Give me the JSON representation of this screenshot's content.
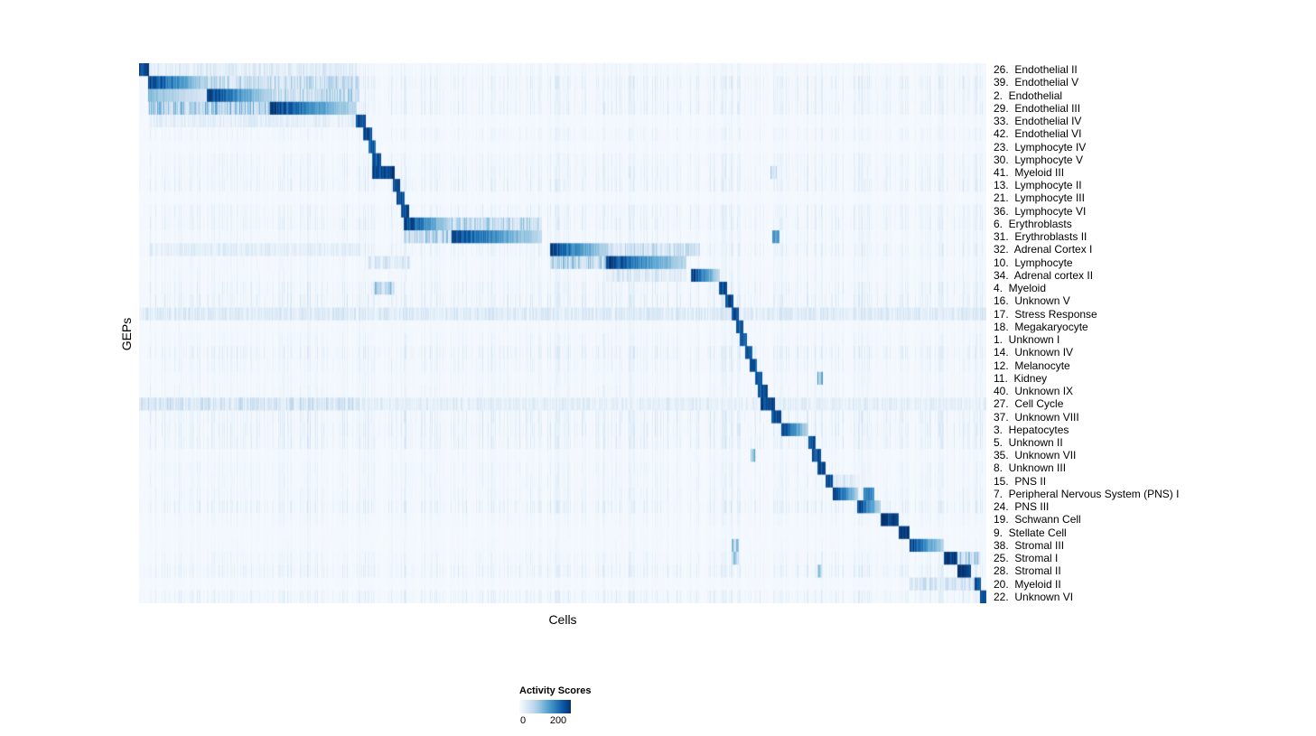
{
  "chart_data": {
    "type": "heatmap",
    "title": "",
    "xlabel": "Cells",
    "ylabel": "GEPs",
    "n_rows": 42,
    "colorbar": {
      "title": "Activity Scores",
      "tick_labels": [
        "0",
        "200"
      ],
      "min": 0,
      "max_tick": 200,
      "colormap": "Blues",
      "stops": [
        [
          0.0,
          247,
          251,
          255
        ],
        [
          0.125,
          222,
          235,
          247
        ],
        [
          0.25,
          198,
          219,
          239
        ],
        [
          0.375,
          158,
          202,
          225
        ],
        [
          0.5,
          107,
          174,
          214
        ],
        [
          0.625,
          66,
          146,
          198
        ],
        [
          0.75,
          33,
          113,
          181
        ],
        [
          0.875,
          8,
          81,
          156
        ],
        [
          1.0,
          8,
          48,
          107
        ]
      ]
    },
    "rows": [
      {
        "label": "26.  Endothelial II",
        "segments": [
          [
            0.0,
            0.0117,
            0.95
          ],
          [
            0.012,
            0.26,
            0.12
          ]
        ]
      },
      {
        "label": "39.  Endothelial V",
        "segments": [
          [
            0.0117,
            0.081,
            0.95
          ],
          [
            0.081,
            0.26,
            0.25
          ]
        ]
      },
      {
        "label": "2.  Endothelial",
        "segments": [
          [
            0.0117,
            0.081,
            0.45
          ],
          [
            0.081,
            0.1556,
            0.95
          ],
          [
            0.1556,
            0.26,
            0.28
          ]
        ]
      },
      {
        "label": "29.  Endothelial III",
        "segments": [
          [
            0.0117,
            0.1556,
            0.35
          ],
          [
            0.1556,
            0.2569,
            0.95
          ]
        ]
      },
      {
        "label": "33.  Endothelial IV",
        "segments": [
          [
            0.2569,
            0.2676,
            0.9
          ],
          [
            0.012,
            0.2569,
            0.1
          ]
        ]
      },
      {
        "label": "42.  Endothelial VI",
        "segments": [
          [
            0.2644,
            0.275,
            0.9
          ]
        ]
      },
      {
        "label": "23.  Lymphocyte IV",
        "segments": [
          [
            0.2708,
            0.2793,
            0.85
          ]
        ]
      },
      {
        "label": "30.  Lymphocyte V",
        "segments": [
          [
            0.2761,
            0.2857,
            0.85
          ]
        ]
      },
      {
        "label": "41.  Myeloid III",
        "segments": [
          [
            0.2761,
            0.3017,
            0.95
          ],
          [
            0.746,
            0.753,
            0.3
          ]
        ]
      },
      {
        "label": "13.  Lymphocyte II",
        "segments": [
          [
            0.2996,
            0.3081,
            0.9
          ]
        ]
      },
      {
        "label": "21.  Lymphocyte III",
        "segments": [
          [
            0.3049,
            0.3134,
            0.9
          ]
        ]
      },
      {
        "label": "36.  Lymphocyte VI",
        "segments": [
          [
            0.3102,
            0.3187,
            0.9
          ]
        ]
      },
      {
        "label": "6.  Erythroblasts",
        "segments": [
          [
            0.3134,
            0.3689,
            0.95
          ],
          [
            0.3689,
            0.4755,
            0.28
          ]
        ]
      },
      {
        "label": "31.  Erythroblasts II",
        "segments": [
          [
            0.3689,
            0.4755,
            0.92
          ],
          [
            0.3134,
            0.3689,
            0.3
          ],
          [
            0.748,
            0.756,
            0.6
          ]
        ]
      },
      {
        "label": "32.  Adrenal Cortex I",
        "segments": [
          [
            0.486,
            0.5522,
            0.95
          ],
          [
            0.5522,
            0.662,
            0.22
          ],
          [
            0.012,
            0.26,
            0.1
          ]
        ]
      },
      {
        "label": "10.  Lymphocyte",
        "segments": [
          [
            0.486,
            0.5522,
            0.3
          ],
          [
            0.5522,
            0.6461,
            0.95
          ],
          [
            0.27,
            0.32,
            0.15
          ]
        ]
      },
      {
        "label": "34.  Adrenal cortex II",
        "segments": [
          [
            0.6514,
            0.6855,
            0.95
          ],
          [
            0.5522,
            0.6461,
            0.15
          ]
        ]
      },
      {
        "label": "4.  Myeloid",
        "segments": [
          [
            0.6855,
            0.694,
            0.9
          ],
          [
            0.277,
            0.302,
            0.3
          ]
        ]
      },
      {
        "label": "16.  Unknown V",
        "segments": [
          [
            0.6929,
            0.7015,
            0.9
          ]
        ]
      },
      {
        "label": "17.  Stress Response",
        "segments": [
          [
            0.6994,
            0.7079,
            0.9
          ],
          [
            0.0,
            1.0,
            0.13
          ]
        ]
      },
      {
        "label": "18.  Megakaryocyte",
        "segments": [
          [
            0.7047,
            0.7132,
            0.9
          ]
        ]
      },
      {
        "label": "1.  Unknown I",
        "segments": [
          [
            0.71,
            0.7175,
            0.9
          ]
        ]
      },
      {
        "label": "14.  Unknown IV",
        "segments": [
          [
            0.7155,
            0.7239,
            0.9
          ]
        ]
      },
      {
        "label": "12.  Melanocyte",
        "segments": [
          [
            0.7207,
            0.7292,
            0.9
          ]
        ]
      },
      {
        "label": "11.  Kidney",
        "segments": [
          [
            0.7271,
            0.7356,
            0.9
          ],
          [
            0.8017,
            0.807,
            0.4
          ]
        ]
      },
      {
        "label": "40.  Unknown IX",
        "segments": [
          [
            0.7313,
            0.742,
            0.9
          ]
        ]
      },
      {
        "label": "27.  Cell Cycle",
        "segments": [
          [
            0.7345,
            0.7505,
            0.95
          ],
          [
            0.0,
            0.26,
            0.18
          ],
          [
            0.26,
            1.0,
            0.1
          ]
        ]
      },
      {
        "label": "37.  Unknown VIII",
        "segments": [
          [
            0.7473,
            0.758,
            0.9
          ]
        ]
      },
      {
        "label": "3.  Hepatocytes",
        "segments": [
          [
            0.758,
            0.79,
            0.95
          ]
        ]
      },
      {
        "label": "5.  Unknown II",
        "segments": [
          [
            0.79,
            0.7985,
            0.9
          ]
        ]
      },
      {
        "label": "35.  Unknown VII",
        "segments": [
          [
            0.7953,
            0.8049,
            0.9
          ],
          [
            0.7218,
            0.7282,
            0.4
          ]
        ]
      },
      {
        "label": "8.  Unknown III",
        "segments": [
          [
            0.8017,
            0.8102,
            0.9
          ]
        ]
      },
      {
        "label": "15.  PNS II",
        "segments": [
          [
            0.8113,
            0.8188,
            0.9
          ],
          [
            0.8188,
            0.8486,
            0.15
          ]
        ]
      },
      {
        "label": "7.  Peripheral Nervous System (PNS) I",
        "segments": [
          [
            0.8188,
            0.8486,
            0.97
          ],
          [
            0.8553,
            0.868,
            0.7
          ]
        ]
      },
      {
        "label": "24.  PNS III",
        "segments": [
          [
            0.8486,
            0.8753,
            0.95
          ]
        ]
      },
      {
        "label": "19.  Schwann Cell",
        "segments": [
          [
            0.8753,
            0.8966,
            0.95
          ]
        ]
      },
      {
        "label": "9.  Stellate Cell",
        "segments": [
          [
            0.8966,
            0.9098,
            0.95
          ]
        ]
      },
      {
        "label": "38.  Stromal III",
        "segments": [
          [
            0.9098,
            0.9499,
            0.95
          ],
          [
            0.7,
            0.708,
            0.35
          ]
        ]
      },
      {
        "label": "25.  Stromal I",
        "segments": [
          [
            0.9499,
            0.9659,
            0.95
          ],
          [
            0.9659,
            0.9925,
            0.3
          ],
          [
            0.7,
            0.708,
            0.3
          ]
        ]
      },
      {
        "label": "28.  Stromal II",
        "segments": [
          [
            0.9659,
            0.9819,
            0.95
          ],
          [
            0.801,
            0.807,
            0.3
          ]
        ]
      },
      {
        "label": "20.  Myeloid II",
        "segments": [
          [
            0.9872,
            0.9936,
            0.9
          ],
          [
            0.9098,
            0.987,
            0.18
          ]
        ]
      },
      {
        "label": "22.  Unknown VI",
        "segments": [
          [
            0.9936,
            1.0,
            0.95
          ]
        ]
      }
    ]
  }
}
